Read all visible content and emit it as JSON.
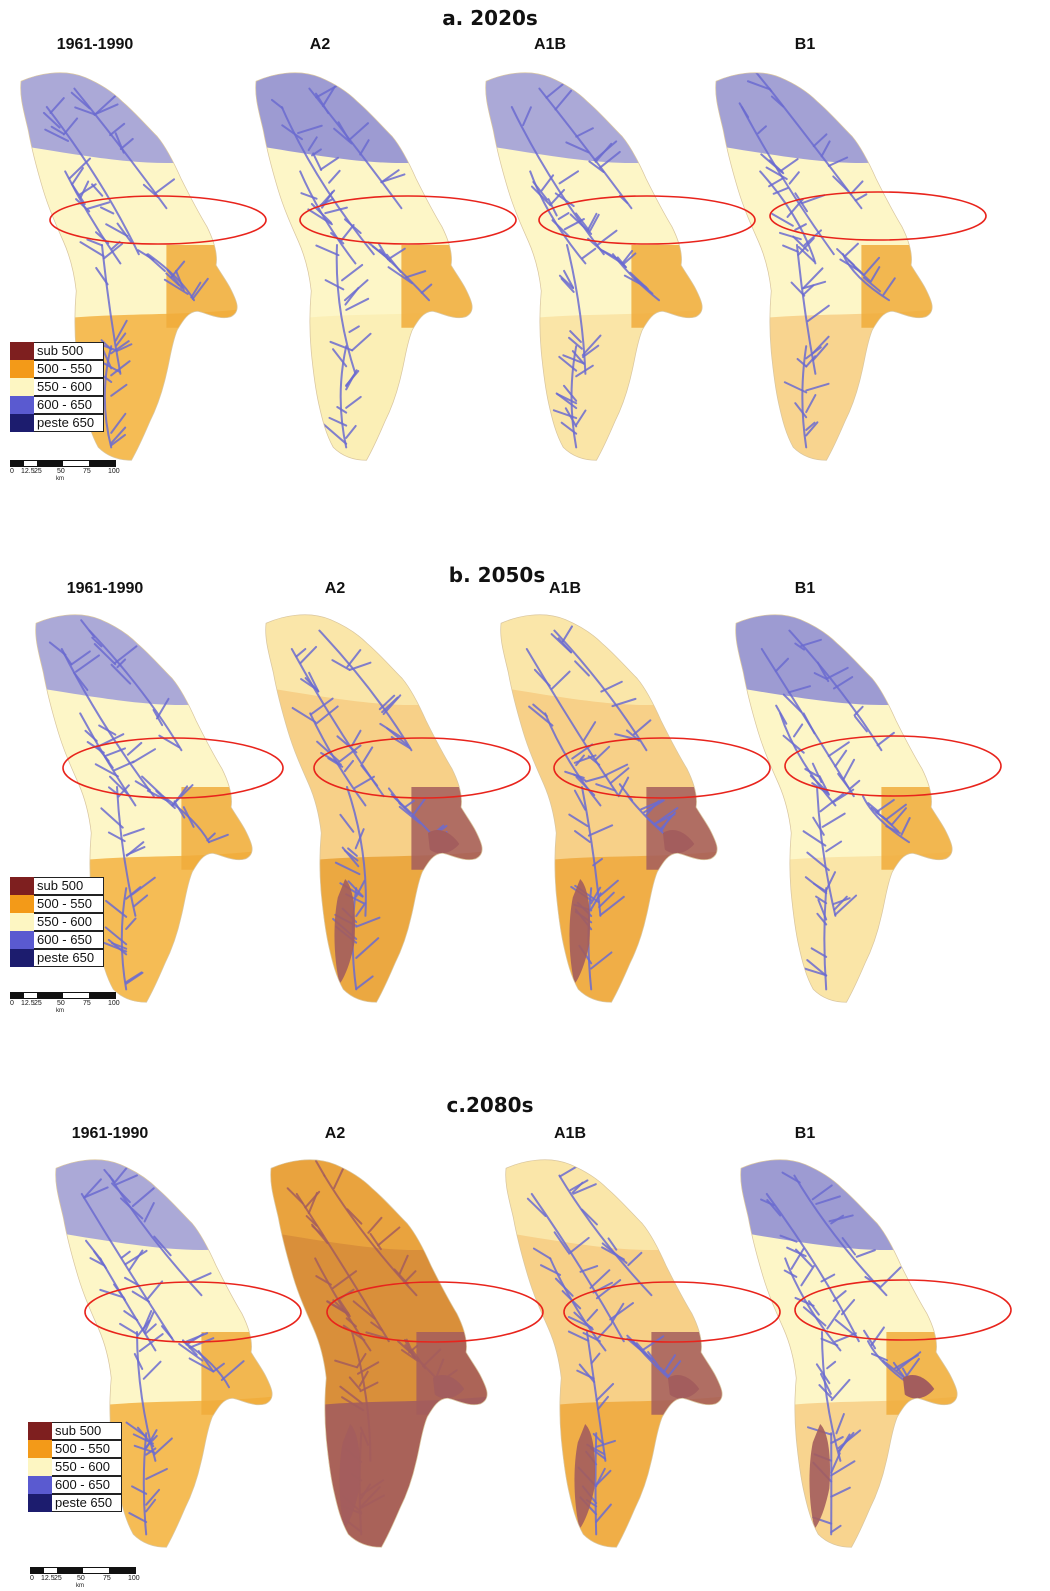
{
  "panels": [
    {
      "id": "a",
      "title": "a. 2020s",
      "maps": [
        {
          "label": "1961-1990",
          "north": "#8f8fdc",
          "mid": "#fdf6c7",
          "south": "#f4b648",
          "east": "#f0ac3b",
          "rivers": "#6b6bd0",
          "dark": "none"
        },
        {
          "label": "A2",
          "north": "#7c7cd6",
          "mid": "#fdf6c7",
          "south": "#fbeeb4",
          "east": "#f0ac3b",
          "rivers": "#6b6bd0",
          "dark": "none"
        },
        {
          "label": "A1B",
          "north": "#8f8fdc",
          "mid": "#fdf6c7",
          "south": "#f9e3a3",
          "east": "#f0ac3b",
          "rivers": "#6b6bd0",
          "dark": "none"
        },
        {
          "label": "B1",
          "north": "#8484d8",
          "mid": "#fdf6c7",
          "south": "#f7d088",
          "east": "#f0ac3b",
          "rivers": "#6b6bd0",
          "dark": "none"
        }
      ]
    },
    {
      "id": "b",
      "title": "b. 2050s",
      "maps": [
        {
          "label": "1961-1990",
          "north": "#8f8fdc",
          "mid": "#fdf6c7",
          "south": "#f4b648",
          "east": "#f0ac3b",
          "rivers": "#6b6bd0",
          "dark": "none"
        },
        {
          "label": "A2",
          "north": "#fbeeb4",
          "mid": "#f7d088",
          "south": "#e9a33a",
          "east": "#a35d5d",
          "rivers": "#6b6bd0",
          "dark": "#a35d5d"
        },
        {
          "label": "A1B",
          "north": "#fbeeb4",
          "mid": "#f7d088",
          "south": "#eeaa40",
          "east": "#a35d5d",
          "rivers": "#6b6bd0",
          "dark": "#a35d5d"
        },
        {
          "label": "B1",
          "north": "#7c7cd6",
          "mid": "#fdf6c7",
          "south": "#f9e3a3",
          "east": "#f0ac3b",
          "rivers": "#6b6bd0",
          "dark": "none"
        }
      ]
    },
    {
      "id": "c",
      "title": "c.2080s",
      "maps": [
        {
          "label": "1961-1990",
          "north": "#8f8fdc",
          "mid": "#fdf6c7",
          "south": "#f4b648",
          "east": "#f0ac3b",
          "rivers": "#6b6bd0",
          "dark": "none"
        },
        {
          "label": "A2",
          "north": "#eeaa40",
          "mid": "#d98f3a",
          "south": "#a35d5d",
          "east": "#a35d5d",
          "rivers": "#a35d5d",
          "dark": "#a35d5d"
        },
        {
          "label": "A1B",
          "north": "#fbeeb4",
          "mid": "#f7d088",
          "south": "#eeaa40",
          "east": "#a35d5d",
          "rivers": "#6b6bd0",
          "dark": "#a35d5d"
        },
        {
          "label": "B1",
          "north": "#7c7cd6",
          "mid": "#fdf6c7",
          "south": "#f7d088",
          "east": "#f0ac3b",
          "rivers": "#6b6bd0",
          "dark": "#a35d5d"
        }
      ]
    }
  ],
  "legend": {
    "items": [
      {
        "label": "sub 500",
        "color": "#7e1f1f"
      },
      {
        "label": "500 - 550",
        "color": "#f39a18"
      },
      {
        "label": "550 - 600",
        "color": "#fdf6c2"
      },
      {
        "label": "600 - 650",
        "color": "#5a5ad0"
      },
      {
        "label": "peste 650",
        "color": "#1c1c6e"
      }
    ]
  },
  "scalebar": {
    "ticks": [
      "0",
      "12.5",
      "25",
      "50",
      "75",
      "100"
    ],
    "unit": "km"
  }
}
